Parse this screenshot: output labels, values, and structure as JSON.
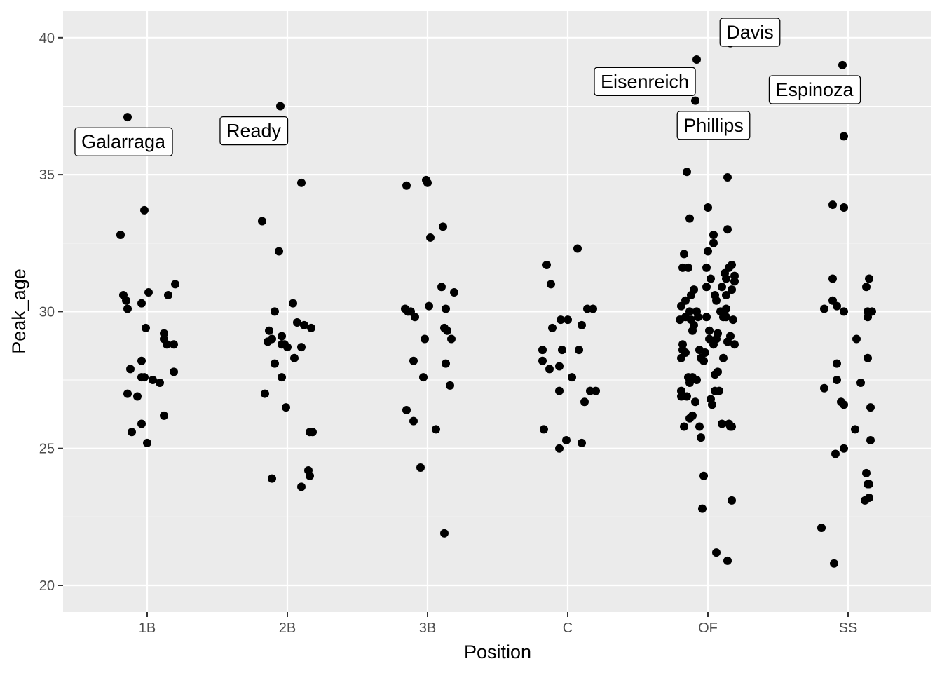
{
  "chart_data": {
    "type": "scatter",
    "subtype": "jitter",
    "xlabel": "Position",
    "ylabel": "Peak_age",
    "categories": [
      "1B",
      "2B",
      "3B",
      "C",
      "OF",
      "SS"
    ],
    "ylim": [
      19,
      41
    ],
    "yticks": [
      20,
      25,
      30,
      35,
      40
    ],
    "grid": true,
    "legend": "none",
    "colors": {
      "panel": "#ebebeb",
      "grid": "#ffffff",
      "point": "#000000",
      "tick_text": "#4d4d4d"
    },
    "points": [
      {
        "x": "1B",
        "jitter": -0.19,
        "y": 32.8
      },
      {
        "x": "1B",
        "jitter": -0.14,
        "y": 37.1
      },
      {
        "x": "1B",
        "jitter": -0.17,
        "y": 30.6
      },
      {
        "x": "1B",
        "jitter": -0.15,
        "y": 30.4
      },
      {
        "x": "1B",
        "jitter": -0.14,
        "y": 30.1
      },
      {
        "x": "1B",
        "jitter": -0.12,
        "y": 27.9
      },
      {
        "x": "1B",
        "jitter": -0.14,
        "y": 27.0
      },
      {
        "x": "1B",
        "jitter": -0.07,
        "y": 26.9
      },
      {
        "x": "1B",
        "jitter": -0.11,
        "y": 25.6
      },
      {
        "x": "1B",
        "jitter": -0.04,
        "y": 25.9
      },
      {
        "x": "1B",
        "jitter": -0.04,
        "y": 27.6
      },
      {
        "x": "1B",
        "jitter": -0.04,
        "y": 28.2
      },
      {
        "x": "1B",
        "jitter": -0.02,
        "y": 27.6
      },
      {
        "x": "1B",
        "jitter": -0.04,
        "y": 30.3
      },
      {
        "x": "1B",
        "jitter": -0.02,
        "y": 33.7
      },
      {
        "x": "1B",
        "jitter": -0.01,
        "y": 29.4
      },
      {
        "x": "1B",
        "jitter": 0.0,
        "y": 25.2
      },
      {
        "x": "1B",
        "jitter": 0.01,
        "y": 30.7
      },
      {
        "x": "1B",
        "jitter": 0.04,
        "y": 27.5
      },
      {
        "x": "1B",
        "jitter": 0.09,
        "y": 27.4
      },
      {
        "x": "1B",
        "jitter": 0.12,
        "y": 29.2
      },
      {
        "x": "1B",
        "jitter": 0.12,
        "y": 29.0
      },
      {
        "x": "1B",
        "jitter": 0.12,
        "y": 26.2
      },
      {
        "x": "1B",
        "jitter": 0.14,
        "y": 28.8
      },
      {
        "x": "1B",
        "jitter": 0.15,
        "y": 30.6
      },
      {
        "x": "1B",
        "jitter": 0.19,
        "y": 27.8
      },
      {
        "x": "1B",
        "jitter": 0.19,
        "y": 28.8
      },
      {
        "x": "1B",
        "jitter": 0.2,
        "y": 31.0
      },
      {
        "x": "2B",
        "jitter": -0.18,
        "y": 33.3
      },
      {
        "x": "2B",
        "jitter": -0.16,
        "y": 27.0
      },
      {
        "x": "2B",
        "jitter": -0.14,
        "y": 28.9
      },
      {
        "x": "2B",
        "jitter": -0.13,
        "y": 29.3
      },
      {
        "x": "2B",
        "jitter": -0.11,
        "y": 29.0
      },
      {
        "x": "2B",
        "jitter": -0.11,
        "y": 23.9
      },
      {
        "x": "2B",
        "jitter": -0.09,
        "y": 28.1
      },
      {
        "x": "2B",
        "jitter": -0.09,
        "y": 30.0
      },
      {
        "x": "2B",
        "jitter": -0.06,
        "y": 32.2
      },
      {
        "x": "2B",
        "jitter": -0.05,
        "y": 37.5
      },
      {
        "x": "2B",
        "jitter": -0.04,
        "y": 28.8
      },
      {
        "x": "2B",
        "jitter": -0.04,
        "y": 27.6
      },
      {
        "x": "2B",
        "jitter": -0.04,
        "y": 29.1
      },
      {
        "x": "2B",
        "jitter": -0.02,
        "y": 28.8
      },
      {
        "x": "2B",
        "jitter": -0.01,
        "y": 26.5
      },
      {
        "x": "2B",
        "jitter": 0.0,
        "y": 28.7
      },
      {
        "x": "2B",
        "jitter": 0.04,
        "y": 30.3
      },
      {
        "x": "2B",
        "jitter": 0.05,
        "y": 28.3
      },
      {
        "x": "2B",
        "jitter": 0.07,
        "y": 29.6
      },
      {
        "x": "2B",
        "jitter": 0.1,
        "y": 28.7
      },
      {
        "x": "2B",
        "jitter": 0.1,
        "y": 23.6
      },
      {
        "x": "2B",
        "jitter": 0.1,
        "y": 34.7
      },
      {
        "x": "2B",
        "jitter": 0.12,
        "y": 29.5
      },
      {
        "x": "2B",
        "jitter": 0.15,
        "y": 24.2
      },
      {
        "x": "2B",
        "jitter": 0.16,
        "y": 24.0
      },
      {
        "x": "2B",
        "jitter": 0.16,
        "y": 25.6
      },
      {
        "x": "2B",
        "jitter": 0.17,
        "y": 29.4
      },
      {
        "x": "2B",
        "jitter": 0.18,
        "y": 25.6
      },
      {
        "x": "3B",
        "jitter": -0.16,
        "y": 30.1
      },
      {
        "x": "3B",
        "jitter": -0.15,
        "y": 34.6
      },
      {
        "x": "3B",
        "jitter": -0.15,
        "y": 26.4
      },
      {
        "x": "3B",
        "jitter": -0.14,
        "y": 30.0
      },
      {
        "x": "3B",
        "jitter": -0.12,
        "y": 30.0
      },
      {
        "x": "3B",
        "jitter": -0.1,
        "y": 28.2
      },
      {
        "x": "3B",
        "jitter": -0.1,
        "y": 26.0
      },
      {
        "x": "3B",
        "jitter": -0.09,
        "y": 29.8
      },
      {
        "x": "3B",
        "jitter": -0.05,
        "y": 24.3
      },
      {
        "x": "3B",
        "jitter": -0.03,
        "y": 27.6
      },
      {
        "x": "3B",
        "jitter": -0.02,
        "y": 29.0
      },
      {
        "x": "3B",
        "jitter": -0.01,
        "y": 34.8
      },
      {
        "x": "3B",
        "jitter": 0.0,
        "y": 34.7
      },
      {
        "x": "3B",
        "jitter": 0.01,
        "y": 30.2
      },
      {
        "x": "3B",
        "jitter": 0.02,
        "y": 32.7
      },
      {
        "x": "3B",
        "jitter": 0.06,
        "y": 25.7
      },
      {
        "x": "3B",
        "jitter": 0.1,
        "y": 30.9
      },
      {
        "x": "3B",
        "jitter": 0.11,
        "y": 33.1
      },
      {
        "x": "3B",
        "jitter": 0.12,
        "y": 21.9
      },
      {
        "x": "3B",
        "jitter": 0.12,
        "y": 29.4
      },
      {
        "x": "3B",
        "jitter": 0.13,
        "y": 30.1
      },
      {
        "x": "3B",
        "jitter": 0.13,
        "y": 28.1
      },
      {
        "x": "3B",
        "jitter": 0.14,
        "y": 29.3
      },
      {
        "x": "3B",
        "jitter": 0.16,
        "y": 27.3
      },
      {
        "x": "3B",
        "jitter": 0.17,
        "y": 29.0
      },
      {
        "x": "3B",
        "jitter": 0.19,
        "y": 30.7
      },
      {
        "x": "C",
        "jitter": -0.18,
        "y": 28.2
      },
      {
        "x": "C",
        "jitter": -0.18,
        "y": 28.6
      },
      {
        "x": "C",
        "jitter": -0.17,
        "y": 25.7
      },
      {
        "x": "C",
        "jitter": -0.15,
        "y": 31.7
      },
      {
        "x": "C",
        "jitter": -0.13,
        "y": 27.9
      },
      {
        "x": "C",
        "jitter": -0.12,
        "y": 31.0
      },
      {
        "x": "C",
        "jitter": -0.11,
        "y": 29.4
      },
      {
        "x": "C",
        "jitter": -0.06,
        "y": 27.1
      },
      {
        "x": "C",
        "jitter": -0.06,
        "y": 25.0
      },
      {
        "x": "C",
        "jitter": -0.06,
        "y": 28.0
      },
      {
        "x": "C",
        "jitter": -0.05,
        "y": 29.7
      },
      {
        "x": "C",
        "jitter": -0.04,
        "y": 28.6
      },
      {
        "x": "C",
        "jitter": -0.01,
        "y": 25.3
      },
      {
        "x": "C",
        "jitter": 0.0,
        "y": 29.7
      },
      {
        "x": "C",
        "jitter": 0.03,
        "y": 27.6
      },
      {
        "x": "C",
        "jitter": 0.07,
        "y": 32.3
      },
      {
        "x": "C",
        "jitter": 0.08,
        "y": 28.6
      },
      {
        "x": "C",
        "jitter": 0.1,
        "y": 25.2
      },
      {
        "x": "C",
        "jitter": 0.1,
        "y": 29.5
      },
      {
        "x": "C",
        "jitter": 0.12,
        "y": 26.7
      },
      {
        "x": "C",
        "jitter": 0.14,
        "y": 30.1
      },
      {
        "x": "C",
        "jitter": 0.16,
        "y": 27.1
      },
      {
        "x": "C",
        "jitter": 0.18,
        "y": 30.1
      },
      {
        "x": "C",
        "jitter": 0.2,
        "y": 27.1
      },
      {
        "x": "OF",
        "jitter": -0.2,
        "y": 29.7
      },
      {
        "x": "OF",
        "jitter": -0.19,
        "y": 26.9
      },
      {
        "x": "OF",
        "jitter": -0.19,
        "y": 27.1
      },
      {
        "x": "OF",
        "jitter": -0.19,
        "y": 28.3
      },
      {
        "x": "OF",
        "jitter": -0.19,
        "y": 30.2
      },
      {
        "x": "OF",
        "jitter": -0.18,
        "y": 31.6
      },
      {
        "x": "OF",
        "jitter": -0.18,
        "y": 28.8
      },
      {
        "x": "OF",
        "jitter": -0.18,
        "y": 28.6
      },
      {
        "x": "OF",
        "jitter": -0.17,
        "y": 32.1
      },
      {
        "x": "OF",
        "jitter": -0.17,
        "y": 25.8
      },
      {
        "x": "OF",
        "jitter": -0.16,
        "y": 30.4
      },
      {
        "x": "OF",
        "jitter": -0.16,
        "y": 29.8
      },
      {
        "x": "OF",
        "jitter": -0.16,
        "y": 28.5
      },
      {
        "x": "OF",
        "jitter": -0.15,
        "y": 26.9
      },
      {
        "x": "OF",
        "jitter": -0.15,
        "y": 35.1
      },
      {
        "x": "OF",
        "jitter": -0.14,
        "y": 27.6
      },
      {
        "x": "OF",
        "jitter": -0.14,
        "y": 31.6
      },
      {
        "x": "OF",
        "jitter": -0.13,
        "y": 26.1
      },
      {
        "x": "OF",
        "jitter": -0.13,
        "y": 33.4
      },
      {
        "x": "OF",
        "jitter": -0.13,
        "y": 30.0
      },
      {
        "x": "OF",
        "jitter": -0.13,
        "y": 27.4
      },
      {
        "x": "OF",
        "jitter": -0.12,
        "y": 30.6
      },
      {
        "x": "OF",
        "jitter": -0.12,
        "y": 29.7
      },
      {
        "x": "OF",
        "jitter": -0.11,
        "y": 29.3
      },
      {
        "x": "OF",
        "jitter": -0.11,
        "y": 26.2
      },
      {
        "x": "OF",
        "jitter": -0.11,
        "y": 27.6
      },
      {
        "x": "OF",
        "jitter": -0.1,
        "y": 30.8
      },
      {
        "x": "OF",
        "jitter": -0.1,
        "y": 29.5
      },
      {
        "x": "OF",
        "jitter": -0.09,
        "y": 37.7
      },
      {
        "x": "OF",
        "jitter": -0.09,
        "y": 26.7
      },
      {
        "x": "OF",
        "jitter": -0.08,
        "y": 39.2
      },
      {
        "x": "OF",
        "jitter": -0.08,
        "y": 30.0
      },
      {
        "x": "OF",
        "jitter": -0.08,
        "y": 27.5
      },
      {
        "x": "OF",
        "jitter": -0.07,
        "y": 29.8
      },
      {
        "x": "OF",
        "jitter": -0.06,
        "y": 25.8
      },
      {
        "x": "OF",
        "jitter": -0.06,
        "y": 28.6
      },
      {
        "x": "OF",
        "jitter": -0.05,
        "y": 25.4
      },
      {
        "x": "OF",
        "jitter": -0.05,
        "y": 28.3
      },
      {
        "x": "OF",
        "jitter": -0.04,
        "y": 22.8
      },
      {
        "x": "OF",
        "jitter": -0.03,
        "y": 28.2
      },
      {
        "x": "OF",
        "jitter": -0.03,
        "y": 24.0
      },
      {
        "x": "OF",
        "jitter": -0.02,
        "y": 28.5
      },
      {
        "x": "OF",
        "jitter": -0.01,
        "y": 31.6
      },
      {
        "x": "OF",
        "jitter": -0.01,
        "y": 30.9
      },
      {
        "x": "OF",
        "jitter": -0.01,
        "y": 29.8
      },
      {
        "x": "OF",
        "jitter": 0.0,
        "y": 32.2
      },
      {
        "x": "OF",
        "jitter": 0.0,
        "y": 33.8
      },
      {
        "x": "OF",
        "jitter": 0.01,
        "y": 29.3
      },
      {
        "x": "OF",
        "jitter": 0.01,
        "y": 29.0
      },
      {
        "x": "OF",
        "jitter": 0.02,
        "y": 26.8
      },
      {
        "x": "OF",
        "jitter": 0.02,
        "y": 31.2
      },
      {
        "x": "OF",
        "jitter": 0.03,
        "y": 26.6
      },
      {
        "x": "OF",
        "jitter": 0.04,
        "y": 32.5
      },
      {
        "x": "OF",
        "jitter": 0.04,
        "y": 32.8
      },
      {
        "x": "OF",
        "jitter": 0.04,
        "y": 28.8
      },
      {
        "x": "OF",
        "jitter": 0.05,
        "y": 30.6
      },
      {
        "x": "OF",
        "jitter": 0.05,
        "y": 27.1
      },
      {
        "x": "OF",
        "jitter": 0.05,
        "y": 27.7
      },
      {
        "x": "OF",
        "jitter": 0.06,
        "y": 21.2
      },
      {
        "x": "OF",
        "jitter": 0.06,
        "y": 29.0
      },
      {
        "x": "OF",
        "jitter": 0.06,
        "y": 30.4
      },
      {
        "x": "OF",
        "jitter": 0.07,
        "y": 29.2
      },
      {
        "x": "OF",
        "jitter": 0.07,
        "y": 27.8
      },
      {
        "x": "OF",
        "jitter": 0.08,
        "y": 27.1
      },
      {
        "x": "OF",
        "jitter": 0.09,
        "y": 30.0
      },
      {
        "x": "OF",
        "jitter": 0.1,
        "y": 30.9
      },
      {
        "x": "OF",
        "jitter": 0.1,
        "y": 25.9
      },
      {
        "x": "OF",
        "jitter": 0.11,
        "y": 28.3
      },
      {
        "x": "OF",
        "jitter": 0.11,
        "y": 29.8
      },
      {
        "x": "OF",
        "jitter": 0.12,
        "y": 31.4
      },
      {
        "x": "OF",
        "jitter": 0.13,
        "y": 31.2
      },
      {
        "x": "OF",
        "jitter": 0.13,
        "y": 30.6
      },
      {
        "x": "OF",
        "jitter": 0.13,
        "y": 30.1
      },
      {
        "x": "OF",
        "jitter": 0.13,
        "y": 29.8
      },
      {
        "x": "OF",
        "jitter": 0.14,
        "y": 34.9
      },
      {
        "x": "OF",
        "jitter": 0.14,
        "y": 20.9
      },
      {
        "x": "OF",
        "jitter": 0.14,
        "y": 33.0
      },
      {
        "x": "OF",
        "jitter": 0.14,
        "y": 28.9
      },
      {
        "x": "OF",
        "jitter": 0.15,
        "y": 31.6
      },
      {
        "x": "OF",
        "jitter": 0.15,
        "y": 25.9
      },
      {
        "x": "OF",
        "jitter": 0.16,
        "y": 39.8
      },
      {
        "x": "OF",
        "jitter": 0.16,
        "y": 25.8
      },
      {
        "x": "OF",
        "jitter": 0.16,
        "y": 29.1
      },
      {
        "x": "OF",
        "jitter": 0.17,
        "y": 31.7
      },
      {
        "x": "OF",
        "jitter": 0.17,
        "y": 30.8
      },
      {
        "x": "OF",
        "jitter": 0.17,
        "y": 23.1
      },
      {
        "x": "OF",
        "jitter": 0.17,
        "y": 25.8
      },
      {
        "x": "OF",
        "jitter": 0.18,
        "y": 29.7
      },
      {
        "x": "OF",
        "jitter": 0.19,
        "y": 31.3
      },
      {
        "x": "OF",
        "jitter": 0.19,
        "y": 28.8
      },
      {
        "x": "OF",
        "jitter": 0.19,
        "y": 31.1
      },
      {
        "x": "SS",
        "jitter": -0.19,
        "y": 22.1
      },
      {
        "x": "SS",
        "jitter": -0.17,
        "y": 27.2
      },
      {
        "x": "SS",
        "jitter": -0.17,
        "y": 30.1
      },
      {
        "x": "SS",
        "jitter": -0.11,
        "y": 33.9
      },
      {
        "x": "SS",
        "jitter": -0.11,
        "y": 31.2
      },
      {
        "x": "SS",
        "jitter": -0.11,
        "y": 30.4
      },
      {
        "x": "SS",
        "jitter": -0.1,
        "y": 20.8
      },
      {
        "x": "SS",
        "jitter": -0.09,
        "y": 24.8
      },
      {
        "x": "SS",
        "jitter": -0.08,
        "y": 27.5
      },
      {
        "x": "SS",
        "jitter": -0.08,
        "y": 30.2
      },
      {
        "x": "SS",
        "jitter": -0.08,
        "y": 28.1
      },
      {
        "x": "SS",
        "jitter": -0.05,
        "y": 26.7
      },
      {
        "x": "SS",
        "jitter": -0.04,
        "y": 39.0
      },
      {
        "x": "SS",
        "jitter": -0.03,
        "y": 33.8
      },
      {
        "x": "SS",
        "jitter": -0.03,
        "y": 36.4
      },
      {
        "x": "SS",
        "jitter": -0.03,
        "y": 30.0
      },
      {
        "x": "SS",
        "jitter": -0.03,
        "y": 26.6
      },
      {
        "x": "SS",
        "jitter": -0.03,
        "y": 25.0
      },
      {
        "x": "SS",
        "jitter": 0.05,
        "y": 25.7
      },
      {
        "x": "SS",
        "jitter": 0.06,
        "y": 29.0
      },
      {
        "x": "SS",
        "jitter": 0.09,
        "y": 27.4
      },
      {
        "x": "SS",
        "jitter": 0.12,
        "y": 23.1
      },
      {
        "x": "SS",
        "jitter": 0.13,
        "y": 24.1
      },
      {
        "x": "SS",
        "jitter": 0.13,
        "y": 30.9
      },
      {
        "x": "SS",
        "jitter": 0.14,
        "y": 23.7
      },
      {
        "x": "SS",
        "jitter": 0.14,
        "y": 30.0
      },
      {
        "x": "SS",
        "jitter": 0.14,
        "y": 29.8
      },
      {
        "x": "SS",
        "jitter": 0.14,
        "y": 28.3
      },
      {
        "x": "SS",
        "jitter": 0.15,
        "y": 23.2
      },
      {
        "x": "SS",
        "jitter": 0.15,
        "y": 23.7
      },
      {
        "x": "SS",
        "jitter": 0.15,
        "y": 31.2
      },
      {
        "x": "SS",
        "jitter": 0.16,
        "y": 26.5
      },
      {
        "x": "SS",
        "jitter": 0.16,
        "y": 25.3
      },
      {
        "x": "SS",
        "jitter": 0.17,
        "y": 30.0
      }
    ],
    "annotations": [
      {
        "text": "Galarraga",
        "x": "1B",
        "jitter": -0.17,
        "y": 36.2
      },
      {
        "text": "Ready",
        "x": "2B",
        "jitter": -0.24,
        "y": 36.6
      },
      {
        "text": "Eisenreich",
        "x": "OF",
        "jitter": -0.45,
        "y": 38.4
      },
      {
        "text": "Phillips",
        "x": "OF",
        "jitter": 0.04,
        "y": 36.8
      },
      {
        "text": "Davis",
        "x": "OF",
        "jitter": 0.3,
        "y": 40.2
      },
      {
        "text": "Espinoza",
        "x": "SS",
        "jitter": -0.24,
        "y": 38.1
      }
    ]
  }
}
